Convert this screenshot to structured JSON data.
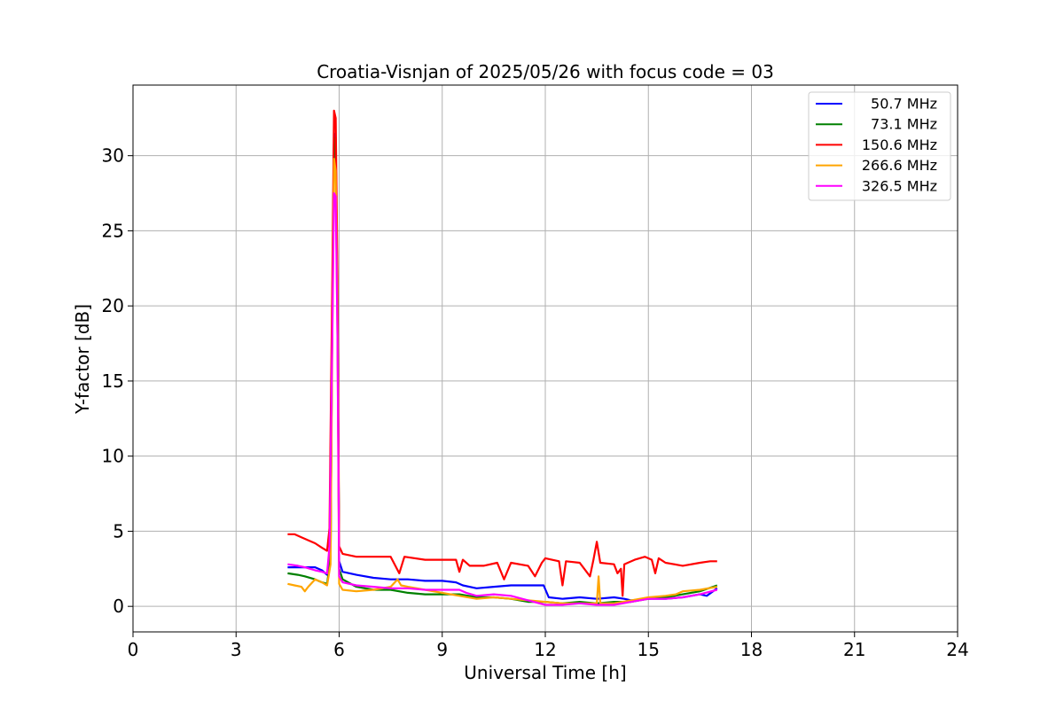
{
  "chart_data": {
    "type": "line",
    "title": "Croatia-Visnjan of 2025/05/26 with focus code = 03",
    "xlabel": "Universal Time [h]",
    "ylabel": "Y-factor [dB]",
    "xlim": [
      0,
      24
    ],
    "ylim": [
      -1.7,
      34.7
    ],
    "xticks": [
      0,
      3,
      6,
      9,
      12,
      15,
      18,
      21,
      24
    ],
    "yticks": [
      0,
      5,
      10,
      15,
      20,
      25,
      30
    ],
    "grid": true,
    "legend_position": "top-right",
    "series": [
      {
        "name": "50.7 MHz",
        "color": "#0000ff",
        "points": [
          [
            4.5,
            2.6
          ],
          [
            4.8,
            2.6
          ],
          [
            5.0,
            2.6
          ],
          [
            5.3,
            2.6
          ],
          [
            5.5,
            2.4
          ],
          [
            5.65,
            2.1
          ],
          [
            5.75,
            3.5
          ],
          [
            5.8,
            20
          ],
          [
            5.85,
            31.5
          ],
          [
            5.9,
            31.2
          ],
          [
            5.95,
            20
          ],
          [
            6.0,
            3.0
          ],
          [
            6.1,
            2.3
          ],
          [
            6.5,
            2.1
          ],
          [
            7.0,
            1.9
          ],
          [
            7.5,
            1.8
          ],
          [
            8.0,
            1.8
          ],
          [
            8.5,
            1.7
          ],
          [
            9.0,
            1.7
          ],
          [
            9.4,
            1.6
          ],
          [
            9.6,
            1.4
          ],
          [
            10.0,
            1.2
          ],
          [
            10.5,
            1.3
          ],
          [
            11.0,
            1.4
          ],
          [
            11.5,
            1.4
          ],
          [
            11.95,
            1.4
          ],
          [
            12.1,
            0.6
          ],
          [
            12.5,
            0.5
          ],
          [
            13.0,
            0.6
          ],
          [
            13.5,
            0.5
          ],
          [
            14.0,
            0.6
          ],
          [
            14.3,
            0.5
          ],
          [
            14.5,
            0.4
          ],
          [
            15.0,
            0.5
          ],
          [
            15.5,
            0.5
          ],
          [
            16.0,
            0.6
          ],
          [
            16.5,
            0.8
          ],
          [
            16.7,
            0.7
          ],
          [
            17.0,
            1.2
          ]
        ]
      },
      {
        "name": "73.1 MHz",
        "color": "#008000",
        "points": [
          [
            4.5,
            2.2
          ],
          [
            4.8,
            2.1
          ],
          [
            5.0,
            2.0
          ],
          [
            5.3,
            1.8
          ],
          [
            5.5,
            1.6
          ],
          [
            5.65,
            1.5
          ],
          [
            5.75,
            3.2
          ],
          [
            5.8,
            20
          ],
          [
            5.85,
            31.2
          ],
          [
            5.9,
            30.8
          ],
          [
            5.95,
            20
          ],
          [
            6.0,
            2.5
          ],
          [
            6.1,
            1.8
          ],
          [
            6.5,
            1.3
          ],
          [
            7.0,
            1.1
          ],
          [
            7.5,
            1.1
          ],
          [
            8.0,
            0.9
          ],
          [
            8.5,
            0.8
          ],
          [
            9.0,
            0.8
          ],
          [
            9.5,
            0.8
          ],
          [
            10.0,
            0.6
          ],
          [
            10.5,
            0.6
          ],
          [
            11.0,
            0.5
          ],
          [
            11.5,
            0.3
          ],
          [
            12.0,
            0.3
          ],
          [
            12.5,
            0.2
          ],
          [
            13.0,
            0.3
          ],
          [
            13.5,
            0.2
          ],
          [
            14.0,
            0.3
          ],
          [
            14.5,
            0.3
          ],
          [
            15.0,
            0.5
          ],
          [
            15.5,
            0.6
          ],
          [
            16.0,
            0.8
          ],
          [
            16.5,
            1.0
          ],
          [
            17.0,
            1.4
          ]
        ]
      },
      {
        "name": "150.6 MHz",
        "color": "#ff0000",
        "points": [
          [
            4.5,
            4.8
          ],
          [
            4.7,
            4.8
          ],
          [
            4.9,
            4.6
          ],
          [
            5.1,
            4.4
          ],
          [
            5.3,
            4.2
          ],
          [
            5.5,
            3.9
          ],
          [
            5.65,
            3.7
          ],
          [
            5.72,
            5.2
          ],
          [
            5.8,
            22
          ],
          [
            5.85,
            33.0
          ],
          [
            5.9,
            32.5
          ],
          [
            5.95,
            22
          ],
          [
            6.0,
            4.0
          ],
          [
            6.1,
            3.5
          ],
          [
            6.5,
            3.3
          ],
          [
            7.0,
            3.3
          ],
          [
            7.5,
            3.3
          ],
          [
            7.75,
            2.2
          ],
          [
            7.9,
            3.3
          ],
          [
            8.5,
            3.1
          ],
          [
            9.0,
            3.1
          ],
          [
            9.4,
            3.1
          ],
          [
            9.5,
            2.3
          ],
          [
            9.6,
            3.1
          ],
          [
            9.8,
            2.7
          ],
          [
            10.2,
            2.7
          ],
          [
            10.6,
            2.9
          ],
          [
            10.8,
            1.8
          ],
          [
            11.0,
            2.9
          ],
          [
            11.5,
            2.7
          ],
          [
            11.7,
            2.0
          ],
          [
            11.9,
            2.9
          ],
          [
            12.0,
            3.2
          ],
          [
            12.4,
            3.0
          ],
          [
            12.5,
            1.4
          ],
          [
            12.6,
            3.0
          ],
          [
            13.0,
            2.9
          ],
          [
            13.3,
            2.0
          ],
          [
            13.4,
            3.1
          ],
          [
            13.5,
            4.3
          ],
          [
            13.6,
            2.9
          ],
          [
            14.0,
            2.8
          ],
          [
            14.1,
            2.2
          ],
          [
            14.2,
            2.5
          ],
          [
            14.25,
            0.7
          ],
          [
            14.3,
            2.8
          ],
          [
            14.6,
            3.1
          ],
          [
            14.9,
            3.3
          ],
          [
            15.1,
            3.1
          ],
          [
            15.2,
            2.2
          ],
          [
            15.3,
            3.2
          ],
          [
            15.5,
            2.9
          ],
          [
            16.0,
            2.7
          ],
          [
            16.5,
            2.9
          ],
          [
            16.8,
            3.0
          ],
          [
            17.0,
            3.0
          ]
        ]
      },
      {
        "name": "266.6 MHz",
        "color": "#ffa500",
        "points": [
          [
            4.5,
            1.5
          ],
          [
            4.7,
            1.4
          ],
          [
            4.9,
            1.3
          ],
          [
            5.0,
            1.0
          ],
          [
            5.1,
            1.3
          ],
          [
            5.3,
            1.8
          ],
          [
            5.5,
            1.6
          ],
          [
            5.65,
            1.4
          ],
          [
            5.75,
            2.8
          ],
          [
            5.8,
            18
          ],
          [
            5.85,
            29.8
          ],
          [
            5.9,
            29.0
          ],
          [
            5.95,
            18
          ],
          [
            6.0,
            1.5
          ],
          [
            6.1,
            1.1
          ],
          [
            6.5,
            1.0
          ],
          [
            7.0,
            1.1
          ],
          [
            7.5,
            1.3
          ],
          [
            7.7,
            1.8
          ],
          [
            7.8,
            1.4
          ],
          [
            8.0,
            1.3
          ],
          [
            8.5,
            1.1
          ],
          [
            9.0,
            0.9
          ],
          [
            9.5,
            0.7
          ],
          [
            10.0,
            0.5
          ],
          [
            10.5,
            0.6
          ],
          [
            11.0,
            0.5
          ],
          [
            11.5,
            0.4
          ],
          [
            12.0,
            0.3
          ],
          [
            12.5,
            0.2
          ],
          [
            13.0,
            0.2
          ],
          [
            13.5,
            0.2
          ],
          [
            13.55,
            2.0
          ],
          [
            13.6,
            0.2
          ],
          [
            14.0,
            0.2
          ],
          [
            14.5,
            0.4
          ],
          [
            15.0,
            0.6
          ],
          [
            15.5,
            0.7
          ],
          [
            15.8,
            0.8
          ],
          [
            16.0,
            1.0
          ],
          [
            16.5,
            1.1
          ],
          [
            17.0,
            1.3
          ]
        ]
      },
      {
        "name": "326.5 MHz",
        "color": "#ff00ff",
        "points": [
          [
            4.5,
            2.8
          ],
          [
            4.8,
            2.7
          ],
          [
            5.0,
            2.6
          ],
          [
            5.3,
            2.4
          ],
          [
            5.5,
            2.3
          ],
          [
            5.65,
            2.2
          ],
          [
            5.72,
            4.0
          ],
          [
            5.8,
            18
          ],
          [
            5.85,
            27.5
          ],
          [
            5.9,
            27.3
          ],
          [
            5.95,
            18
          ],
          [
            6.0,
            2.0
          ],
          [
            6.1,
            1.6
          ],
          [
            6.5,
            1.4
          ],
          [
            7.0,
            1.3
          ],
          [
            7.5,
            1.2
          ],
          [
            8.0,
            1.2
          ],
          [
            8.5,
            1.1
          ],
          [
            9.0,
            1.1
          ],
          [
            9.5,
            1.1
          ],
          [
            9.7,
            0.9
          ],
          [
            10.0,
            0.7
          ],
          [
            10.5,
            0.8
          ],
          [
            11.0,
            0.7
          ],
          [
            11.5,
            0.4
          ],
          [
            12.0,
            0.1
          ],
          [
            12.5,
            0.1
          ],
          [
            13.0,
            0.2
          ],
          [
            13.5,
            0.1
          ],
          [
            14.0,
            0.1
          ],
          [
            14.5,
            0.3
          ],
          [
            15.0,
            0.5
          ],
          [
            15.5,
            0.5
          ],
          [
            16.0,
            0.6
          ],
          [
            16.5,
            0.8
          ],
          [
            17.0,
            1.1
          ]
        ]
      }
    ]
  }
}
